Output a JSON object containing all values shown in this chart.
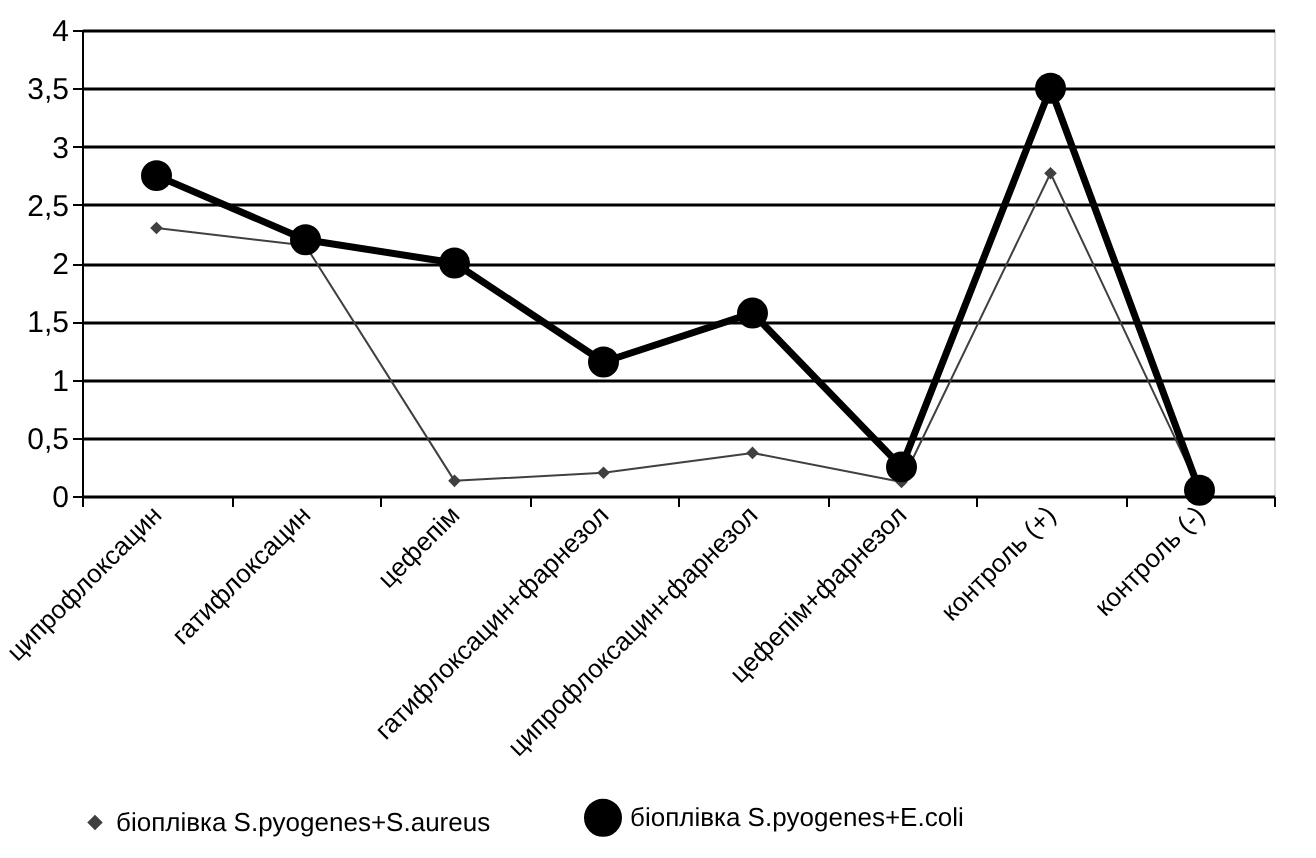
{
  "chart_data": {
    "type": "line",
    "categories": [
      "ципрофлоксацин",
      "гатифлоксацин",
      "цефепім",
      "гатифлоксацин+фарнезол",
      "ципрофлоксацин+фарнезол",
      "цефепім+фарнезол",
      "контроль (+)",
      "контроль (-)"
    ],
    "series": [
      {
        "name": "біоплівка S.pyogenes+S.aureus",
        "color": "#404040",
        "marker": "diamond",
        "values": [
          2.3,
          2.15,
          0.13,
          0.2,
          0.37,
          0.12,
          2.77,
          0.05
        ]
      },
      {
        "name": "біоплівка S.pyogenes+E.coli",
        "color": "#000000",
        "marker": "circle",
        "values": [
          2.75,
          2.2,
          2.0,
          1.15,
          1.57,
          0.25,
          3.5,
          0.05
        ]
      }
    ],
    "ylim": [
      0,
      4
    ],
    "yticks": [
      0,
      {
        "value": 0.5,
        "label": "0,5"
      },
      1,
      {
        "value": 1.5,
        "label": "1,5"
      },
      2,
      {
        "value": 2.5,
        "label": "2,5"
      },
      3,
      {
        "value": 3.5,
        "label": "3,5"
      },
      4
    ],
    "grid": "y",
    "legend": "bottom",
    "line_style": "solid"
  }
}
